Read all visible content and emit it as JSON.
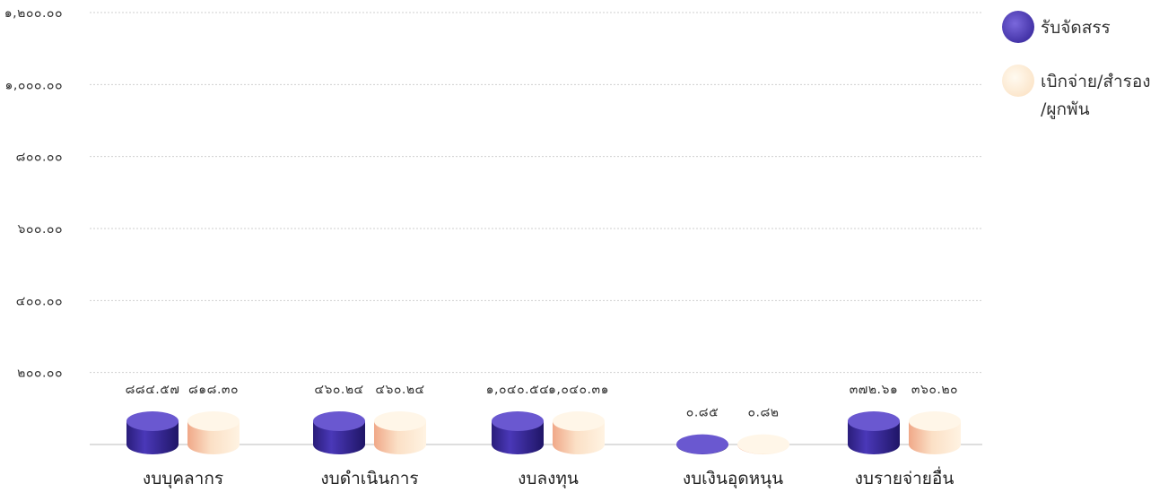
{
  "chart_data": {
    "type": "bar",
    "categories": [
      "งบบุคลากร",
      "งบดำเนินการ",
      "งบลงทุน",
      "งบเงินอุดหนุน",
      "งบรายจ่ายอื่น"
    ],
    "series": [
      {
        "name": "รับจัดสรร",
        "values": [
          884.57,
          460.24,
          1040.54,
          0.85,
          372.61
        ],
        "labels": [
          "๘๘๔.๕๗",
          "๔๖๐.๒๔",
          "๑,๐๔๐.๕๔",
          "๐.๘๕",
          "๓๗๒.๖๑"
        ]
      },
      {
        "name": "เบิกจ่าย/สำรอง/ผูกพัน",
        "values": [
          818.3,
          460.24,
          1040.31,
          0.82,
          360.2
        ],
        "labels": [
          "๘๑๘.๓๐",
          "๔๖๐.๒๔",
          "๑,๐๔๐.๓๑",
          "๐.๘๒",
          "๓๖๐.๒๐"
        ]
      }
    ],
    "yticks": [
      {
        "value": 200,
        "label": "๒๐๐.๐๐"
      },
      {
        "value": 400,
        "label": "๔๐๐.๐๐"
      },
      {
        "value": 600,
        "label": "๖๐๐.๐๐"
      },
      {
        "value": 800,
        "label": "๘๐๐.๐๐"
      },
      {
        "value": 1000,
        "label": "๑,๐๐๐.๐๐"
      },
      {
        "value": 1200,
        "label": "๑,๒๐๐.๐๐"
      }
    ],
    "ylim": [
      0,
      1200
    ],
    "grid": true,
    "legend_position": "top-right",
    "legend_lines": [
      [
        "รับจัดสรร"
      ],
      [
        "เบิกจ่าย/สำรอง",
        "/ผูกพัน"
      ]
    ],
    "colors": {
      "series1": "#3a2a9e",
      "series1_top": "#6a58d0",
      "series2": "#fbe7cf",
      "series2_top": "#fff6e8",
      "series2_side": "#f3b48e"
    }
  }
}
